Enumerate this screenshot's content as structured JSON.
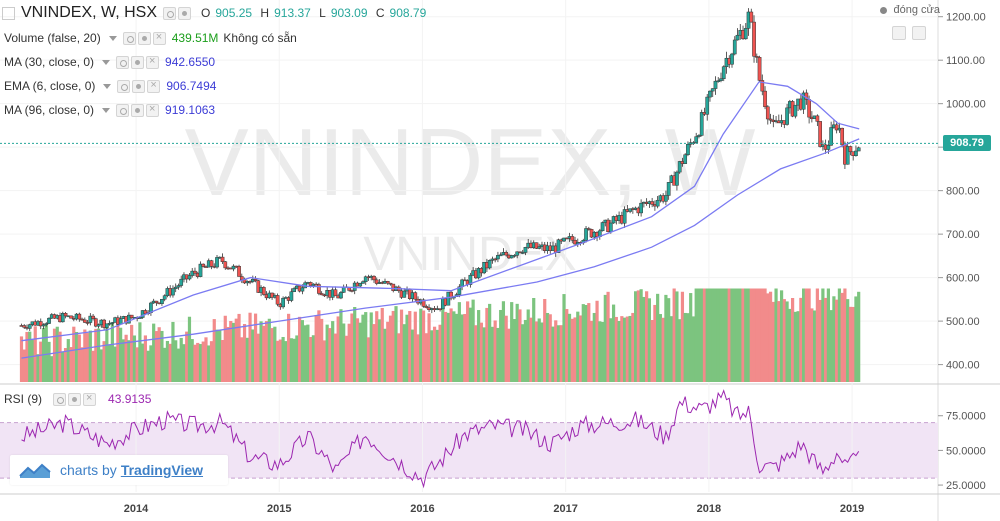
{
  "header": {
    "symbol": "VNINDEX, W, HSX",
    "open_label": "O",
    "open": "905.25",
    "high_label": "H",
    "high": "913.37",
    "low_label": "L",
    "low": "903.09",
    "close_label": "C",
    "close": "908.79"
  },
  "indicators": {
    "volume": {
      "label": "Volume (false, 20)",
      "value": "439.51M",
      "note": "Không có sẵn"
    },
    "ma30": {
      "label": "MA (30, close, 0)",
      "value": "942.6550"
    },
    "ema6": {
      "label": "EMA (6, close, 0)",
      "value": "906.7494"
    },
    "ma96": {
      "label": "MA (96, close, 0)",
      "value": "919.1063"
    },
    "rsi": {
      "label": "RSI (9)",
      "value": "43.9135"
    }
  },
  "right_tag": {
    "label": "đóng cửa"
  },
  "price_tag": "908.79",
  "watermark": {
    "big": "VNINDEX, W",
    "small": "VNINDEX"
  },
  "branding": {
    "prefix": "charts by",
    "link": "TradingView"
  },
  "colors": {
    "up": "#26a69a",
    "down": "#ef5350",
    "up_volume": "#7cc47f",
    "down_volume": "#f28b8b",
    "ma": "#7b7bf2",
    "rsi": "#9c27b0",
    "rsi_band": "#f1e4f5"
  },
  "chart_data": [
    {
      "type": "line",
      "title": "VNINDEX, W, HSX",
      "series": [
        {
          "name": "VNINDEX",
          "x": [
            2013.2,
            2013.5,
            2013.8,
            2014.0,
            2014.2,
            2014.4,
            2014.6,
            2014.8,
            2015.0,
            2015.2,
            2015.4,
            2015.6,
            2015.8,
            2016.0,
            2016.1,
            2016.3,
            2016.5,
            2016.7,
            2016.9,
            2017.1,
            2017.3,
            2017.5,
            2017.7,
            2017.8,
            2017.95,
            2018.1,
            2018.2,
            2018.28,
            2018.35,
            2018.45,
            2018.55,
            2018.65,
            2018.75,
            2018.8,
            2018.9,
            2018.95,
            2019.05
          ],
          "values": [
            490,
            510,
            495,
            510,
            560,
            610,
            640,
            590,
            540,
            590,
            555,
            605,
            575,
            545,
            530,
            590,
            640,
            670,
            665,
            695,
            720,
            760,
            790,
            860,
            960,
            1090,
            1150,
            1200,
            1060,
            940,
            980,
            1010,
            950,
            890,
            960,
            880,
            908
          ]
        },
        {
          "name": "MA (30, close, 0)",
          "x": [
            2013.2,
            2013.8,
            2014.4,
            2014.8,
            2015.2,
            2015.8,
            2016.2,
            2016.7,
            2017.2,
            2017.6,
            2017.9,
            2018.1,
            2018.35,
            2018.55,
            2018.75,
            2018.9,
            2019.05
          ],
          "values": [
            455,
            480,
            560,
            600,
            580,
            575,
            570,
            630,
            690,
            740,
            810,
            930,
            1050,
            1040,
            1000,
            955,
            942
          ]
        },
        {
          "name": "MA (96, close, 0)",
          "x": [
            2013.2,
            2013.8,
            2014.4,
            2015.0,
            2015.6,
            2016.2,
            2016.8,
            2017.2,
            2017.6,
            2017.9,
            2018.2,
            2018.5,
            2018.8,
            2019.05
          ],
          "values": [
            415,
            445,
            470,
            500,
            530,
            555,
            590,
            625,
            670,
            720,
            790,
            850,
            885,
            919
          ]
        }
      ],
      "ylim": [
        360,
        1220
      ],
      "yticks": [
        "400.00",
        "500.00",
        "600.00",
        "700.00",
        "800.00",
        "900.00",
        "1000.00",
        "1100.00",
        "1200.00"
      ]
    },
    {
      "type": "line",
      "title": "RSI (9)",
      "series": [
        {
          "name": "RSI (9)",
          "x": [
            2013.2,
            2013.5,
            2013.8,
            2014.0,
            2014.2,
            2014.4,
            2014.6,
            2014.8,
            2015.0,
            2015.2,
            2015.4,
            2015.6,
            2015.8,
            2016.0,
            2016.1,
            2016.3,
            2016.5,
            2016.7,
            2016.9,
            2017.1,
            2017.3,
            2017.5,
            2017.7,
            2017.8,
            2017.95,
            2018.1,
            2018.2,
            2018.28,
            2018.35,
            2018.45,
            2018.55,
            2018.65,
            2018.75,
            2018.8,
            2018.9,
            2018.95,
            2019.05
          ],
          "values": [
            60,
            70,
            55,
            65,
            72,
            68,
            70,
            45,
            40,
            60,
            35,
            62,
            45,
            30,
            40,
            62,
            68,
            65,
            55,
            68,
            70,
            72,
            60,
            85,
            80,
            88,
            75,
            78,
            40,
            38,
            45,
            55,
            40,
            35,
            50,
            38,
            43.9
          ]
        }
      ],
      "ylim": [
        20,
        95
      ],
      "yticks": [
        "25.0000",
        "50.0000",
        "75.0000"
      ],
      "bands": [
        30,
        70
      ]
    }
  ],
  "xaxis": {
    "ticks": [
      "2014",
      "2015",
      "2016",
      "2017",
      "2018",
      "2019"
    ],
    "tick_values": [
      2014,
      2015,
      2016,
      2017,
      2018,
      2019
    ]
  }
}
